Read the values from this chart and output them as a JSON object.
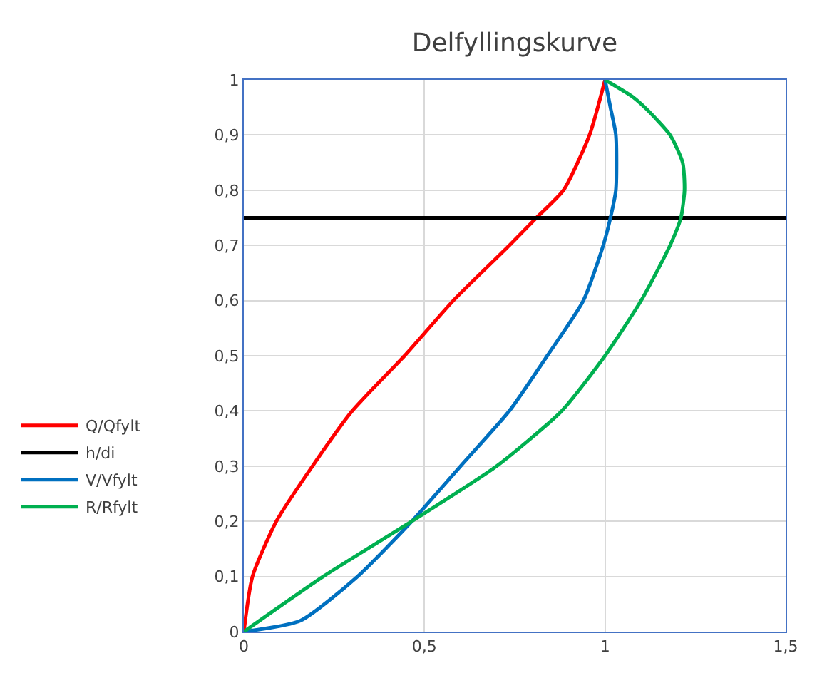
{
  "chart_data": {
    "type": "line",
    "title": "Delfyllingskurve",
    "xlim": [
      0,
      1.5
    ],
    "ylim": [
      0,
      1
    ],
    "xticks": [
      0,
      {
        "value": 0.5,
        "label": "0,5"
      },
      1,
      {
        "value": 1.5,
        "label": "1,5"
      }
    ],
    "yticks": [
      0,
      {
        "value": 0.1,
        "label": "0,1"
      },
      {
        "value": 0.2,
        "label": "0,2"
      },
      {
        "value": 0.3,
        "label": "0,3"
      },
      {
        "value": 0.4,
        "label": "0,4"
      },
      {
        "value": 0.5,
        "label": "0,5"
      },
      {
        "value": 0.6,
        "label": "0,6"
      },
      {
        "value": 0.7,
        "label": "0,7"
      },
      {
        "value": 0.8,
        "label": "0,8"
      },
      {
        "value": 0.9,
        "label": "0,9"
      },
      1
    ],
    "grid": true,
    "legend": "left",
    "marker": "none",
    "line_style": "solid",
    "series": [
      {
        "name": "Q/Qfylt",
        "color": "#ff0000",
        "x": [
          0,
          0.024,
          0.09,
          0.19,
          0.3,
          0.445,
          0.58,
          0.735,
          0.81,
          0.885,
          0.957,
          1.0
        ],
        "values": [
          0,
          0.1,
          0.2,
          0.3,
          0.4,
          0.5,
          0.6,
          0.7,
          0.75,
          0.8,
          0.9,
          1
        ]
      },
      {
        "name": "h/di",
        "color": "#000000",
        "x": [
          0,
          1.5
        ],
        "values": [
          0.75,
          0.75
        ]
      },
      {
        "name": "V/Vfylt",
        "color": "#0070c0",
        "x": [
          0,
          0.157,
          0.315,
          0.465,
          0.6,
          0.735,
          0.84,
          0.94,
          0.995,
          1.015,
          1.03,
          1.03,
          1.015,
          1.0
        ],
        "values": [
          0,
          0.02,
          0.1,
          0.2,
          0.3,
          0.4,
          0.5,
          0.6,
          0.7,
          0.75,
          0.8,
          0.9,
          0.95,
          1
        ]
      },
      {
        "name": "R/Rfylt",
        "color": "#00b050",
        "x": [
          0,
          0.22,
          0.465,
          0.7,
          0.88,
          1.0,
          1.1,
          1.18,
          1.21,
          1.22,
          1.215,
          1.18,
          1.115,
          1.075,
          1.0
        ],
        "values": [
          0,
          0.1,
          0.2,
          0.3,
          0.4,
          0.5,
          0.6,
          0.7,
          0.75,
          0.8,
          0.85,
          0.9,
          0.947,
          0.97,
          1
        ]
      }
    ]
  }
}
